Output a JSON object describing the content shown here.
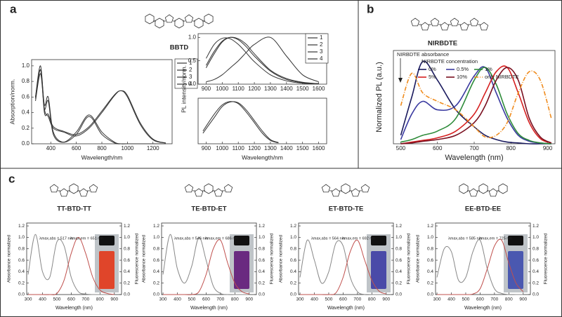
{
  "panels": [
    "a",
    "b",
    "c"
  ],
  "chart_data": [
    {
      "type": "line",
      "title": "BBTD",
      "xlabel": "Wavelength/nm",
      "ylabel": "Absorption/norm.",
      "xlim": [
        250,
        1350
      ],
      "ylim": [
        0,
        1.08
      ],
      "xticks": [
        400,
        600,
        800,
        1000,
        1200
      ],
      "yticks": [
        {
          "value": 0,
          "label": "0.0"
        },
        {
          "value": 0.2,
          "label": "0.2"
        },
        {
          "value": 0.4,
          "label": "0.4"
        },
        {
          "value": 0.6,
          "label": "0.6"
        },
        {
          "value": 0.8,
          "label": "0.8"
        },
        {
          "value": 1,
          "label": "1.0"
        }
      ],
      "x": [
        280,
        320,
        350,
        380,
        420,
        500,
        600,
        700,
        800,
        900,
        950,
        1000,
        1100,
        1200,
        1300
      ],
      "series": [
        {
          "name": "1",
          "color": "#333",
          "values": [
            0.6,
            0.95,
            0.5,
            0.6,
            0.15,
            0.02,
            0.12,
            0.35,
            0.12,
            0.01,
            0,
            0,
            0,
            0,
            0
          ]
        },
        {
          "name": "2",
          "color": "#333",
          "values": [
            0.55,
            0.9,
            0.45,
            0.55,
            0.12,
            0.02,
            0.15,
            0.37,
            0.15,
            0.02,
            0,
            0,
            0,
            0,
            0
          ]
        },
        {
          "name": "3",
          "color": "#333",
          "values": [
            0.6,
            1.0,
            0.45,
            0.35,
            0.2,
            0.15,
            0.1,
            0.2,
            0.4,
            0.62,
            0.68,
            0.6,
            0.25,
            0.05,
            0.01
          ]
        },
        {
          "name": "4",
          "color": "#333",
          "values": [
            0.58,
            0.95,
            0.4,
            0.38,
            0.22,
            0.16,
            0.12,
            0.22,
            0.42,
            0.63,
            0.68,
            0.62,
            0.27,
            0.06,
            0.01
          ]
        }
      ]
    },
    {
      "type": "line",
      "ylabel": "PL intensity/norm.",
      "xlim": [
        850,
        1650
      ],
      "ylim": [
        0,
        1.08
      ],
      "xticks": [
        900,
        1000,
        1100,
        1200,
        1300,
        1400,
        1500,
        1600
      ],
      "yticks": [
        {
          "value": 0,
          "label": "0.0"
        },
        {
          "value": 0.5,
          "label": "0.5"
        },
        {
          "value": 1,
          "label": "1.0"
        }
      ],
      "x": [
        900,
        950,
        1000,
        1050,
        1100,
        1150,
        1200,
        1300,
        1400,
        1500,
        1600
      ],
      "series": [
        {
          "name": "1",
          "color": "#333",
          "values": [
            0.4,
            0.7,
            0.92,
            1.0,
            0.95,
            0.8,
            0.6,
            0.28,
            0.1,
            0.03,
            0.01
          ]
        },
        {
          "name": "2",
          "color": "#333",
          "values": [
            0.35,
            0.65,
            0.9,
            1.0,
            0.97,
            0.85,
            0.65,
            0.3,
            0.12,
            0.04,
            0.01
          ]
        },
        {
          "name": "3",
          "color": "#333",
          "values": [
            0.55,
            0.85,
            0.98,
            0.97,
            0.85,
            0.67,
            0.48,
            0.2,
            0.07,
            0.02,
            0.01
          ]
        },
        {
          "name": "4",
          "color": "#333",
          "values": [
            0.05,
            0.1,
            0.2,
            0.35,
            0.5,
            0.68,
            0.85,
            1.0,
            0.6,
            0.2,
            0.05
          ]
        }
      ]
    },
    {
      "type": "line",
      "xlabel": "Wavelength/nm",
      "xlim": [
        850,
        1650
      ],
      "ylim": [
        0,
        1.08
      ],
      "xticks": [
        900,
        1000,
        1100,
        1200,
        1300,
        1400,
        1500,
        1600
      ],
      "x": [
        880,
        950,
        1000,
        1050,
        1100,
        1150,
        1200,
        1250,
        1300,
        1350
      ],
      "series": [
        {
          "color": "#333",
          "values": [
            0.3,
            0.7,
            0.92,
            1.0,
            0.95,
            0.75,
            0.5,
            0.25,
            0.08,
            0.02
          ]
        },
        {
          "color": "#333",
          "values": [
            0.25,
            0.62,
            0.88,
            0.99,
            0.97,
            0.8,
            0.55,
            0.3,
            0.1,
            0.03
          ]
        }
      ]
    },
    {
      "type": "line",
      "title": "NIRBDTE",
      "xlabel": "Wavelength (nm)",
      "ylabel": "Normalized PL (a.u.)",
      "xlim": [
        480,
        920
      ],
      "ylim": [
        0,
        1.1
      ],
      "xticks": [
        500,
        600,
        700,
        800,
        900
      ],
      "annotation": "NIRBDTE absorbance",
      "legend_title": "NIRBDTE concentration",
      "x": [
        500,
        530,
        560,
        600,
        650,
        700,
        730,
        760,
        790,
        820,
        850,
        880,
        910
      ],
      "series": [
        {
          "name": "0%",
          "color": "#1a1a5e",
          "values": [
            0.1,
            0.55,
            0.97,
            0.75,
            0.4,
            0.2,
            0.1,
            0.05,
            0.02,
            0.01,
            0,
            0,
            0
          ]
        },
        {
          "name": "0.5%",
          "color": "#3a3aa0",
          "values": [
            0.05,
            0.35,
            0.5,
            0.4,
            0.45,
            0.8,
            0.9,
            0.6,
            0.3,
            0.1,
            0.03,
            0.01,
            0
          ]
        },
        {
          "name": "1%",
          "color": "#2e8b3a",
          "values": [
            0.02,
            0.05,
            0.1,
            0.15,
            0.3,
            0.75,
            0.9,
            0.7,
            0.35,
            0.12,
            0.04,
            0.01,
            0
          ]
        },
        {
          "name": "5%",
          "color": "#d62020",
          "values": [
            0,
            0.02,
            0.04,
            0.07,
            0.15,
            0.35,
            0.6,
            0.85,
            0.9,
            0.6,
            0.25,
            0.06,
            0.01
          ]
        },
        {
          "name": "10%",
          "color": "#7a1020",
          "values": [
            0,
            0.01,
            0.03,
            0.05,
            0.1,
            0.25,
            0.45,
            0.75,
            0.9,
            0.75,
            0.3,
            0.08,
            0.01
          ]
        },
        {
          "name": "only NIRBDTE",
          "color": "#f08c1e",
          "style": "dashdot",
          "values": [
            0.45,
            0.83,
            0.6,
            0.5,
            0.4,
            0.2,
            0.08,
            0.1,
            0.25,
            0.6,
            0.85,
            0.75,
            0.3
          ]
        }
      ]
    },
    {
      "type": "line",
      "title": "TT-BTD-TT",
      "xlabel": "Wavelength (nm)",
      "ylabel": "Absorbance normalized",
      "y2label": "Fluorescence normalized",
      "xlim": [
        290,
        950
      ],
      "ylim": [
        0,
        1.25
      ],
      "y2lim": [
        0,
        1.25
      ],
      "xticks": [
        300,
        400,
        500,
        600,
        700,
        800,
        900
      ],
      "yticks": [
        {
          "value": 0,
          "label": "0.0"
        },
        {
          "value": 0.2,
          "label": "0.2"
        },
        {
          "value": 0.4,
          "label": "0.4"
        },
        {
          "value": 0.6,
          "label": "0.6"
        },
        {
          "value": 0.8,
          "label": "0.8"
        },
        {
          "value": 1,
          "label": "1.0"
        },
        {
          "value": 1.2,
          "label": "1.2"
        }
      ],
      "y2ticks": [
        {
          "value": 0,
          "label": "0.0"
        },
        {
          "value": 0.2,
          "label": "0.2"
        },
        {
          "value": 0.4,
          "label": "0.4"
        },
        {
          "value": 0.6,
          "label": "0.6"
        },
        {
          "value": 0.8,
          "label": "0.8"
        },
        {
          "value": 1,
          "label": "1.0"
        },
        {
          "value": 1.2,
          "label": "1.2"
        }
      ],
      "annotations": [
        {
          "text": "λmax,abs = 517 nm",
          "color": "#222"
        },
        {
          "text": "λmax,em = 651 nm",
          "color": "#c0392b"
        }
      ],
      "x": [
        300,
        350,
        400,
        450,
        500,
        550,
        600,
        650,
        700,
        750,
        800,
        850,
        900
      ],
      "series": [
        {
          "color": "#888",
          "values": [
            0.35,
            1.05,
            0.4,
            0.3,
            0.92,
            0.85,
            0.3,
            0.05,
            0.01,
            0,
            0,
            0,
            0
          ]
        },
        {
          "color": "#c0504d",
          "axis": "y2",
          "values": [
            0,
            0,
            0,
            0,
            0.02,
            0.25,
            0.72,
            1.0,
            0.72,
            0.3,
            0.08,
            0.02,
            0
          ]
        }
      ]
    },
    {
      "type": "line",
      "title": "TE-BTD-ET",
      "xlabel": "Wavelength (nm)",
      "ylabel": "Absorbance normalized",
      "y2label": "Fluorescence normalized",
      "xlim": [
        290,
        950
      ],
      "ylim": [
        0,
        1.25
      ],
      "y2lim": [
        0,
        1.25
      ],
      "xticks": [
        300,
        400,
        500,
        600,
        700,
        800,
        900
      ],
      "yticks": [
        {
          "value": 0,
          "label": "0.0"
        },
        {
          "value": 0.2,
          "label": "0.2"
        },
        {
          "value": 0.4,
          "label": "0.4"
        },
        {
          "value": 0.6,
          "label": "0.6"
        },
        {
          "value": 0.8,
          "label": "0.8"
        },
        {
          "value": 1,
          "label": "1.0"
        },
        {
          "value": 1.2,
          "label": "1.2"
        }
      ],
      "y2ticks": [
        {
          "value": 0,
          "label": "0.0"
        },
        {
          "value": 0.2,
          "label": "0.2"
        },
        {
          "value": 0.4,
          "label": "0.4"
        },
        {
          "value": 0.6,
          "label": "0.6"
        },
        {
          "value": 0.8,
          "label": "0.8"
        },
        {
          "value": 1,
          "label": "1.0"
        },
        {
          "value": 1.2,
          "label": "1.2"
        }
      ],
      "annotations": [
        {
          "text": "λmax,abs = 546 nm",
          "color": "#222"
        },
        {
          "text": "λmax,em = 686 nm",
          "color": "#c0392b"
        }
      ],
      "x": [
        300,
        350,
        400,
        450,
        500,
        550,
        600,
        650,
        700,
        750,
        800,
        850,
        900
      ],
      "series": [
        {
          "color": "#888",
          "values": [
            0.35,
            1.05,
            0.45,
            0.2,
            0.5,
            1.0,
            0.6,
            0.15,
            0.02,
            0,
            0,
            0,
            0
          ]
        },
        {
          "color": "#c0504d",
          "axis": "y2",
          "values": [
            0,
            0,
            0,
            0,
            0,
            0.05,
            0.35,
            0.8,
            0.95,
            0.55,
            0.2,
            0.05,
            0.01
          ]
        }
      ]
    },
    {
      "type": "line",
      "title": "ET-BTD-TE",
      "xlabel": "Wavelength (nm)",
      "ylabel": "Absorbance normalized",
      "y2label": "Fluorescence normalized",
      "xlim": [
        290,
        950
      ],
      "ylim": [
        0,
        1.25
      ],
      "y2lim": [
        0,
        1.25
      ],
      "xticks": [
        300,
        400,
        500,
        600,
        700,
        800,
        900
      ],
      "yticks": [
        {
          "value": 0,
          "label": "0.0"
        },
        {
          "value": 0.2,
          "label": "0.2"
        },
        {
          "value": 0.4,
          "label": "0.4"
        },
        {
          "value": 0.6,
          "label": "0.6"
        },
        {
          "value": 0.8,
          "label": "0.8"
        },
        {
          "value": 1,
          "label": "1.0"
        },
        {
          "value": 1.2,
          "label": "1.2"
        }
      ],
      "y2ticks": [
        {
          "value": 0,
          "label": "0.0"
        },
        {
          "value": 0.2,
          "label": "0.2"
        },
        {
          "value": 0.4,
          "label": "0.4"
        },
        {
          "value": 0.6,
          "label": "0.6"
        },
        {
          "value": 0.8,
          "label": "0.8"
        },
        {
          "value": 1,
          "label": "1.0"
        },
        {
          "value": 1.2,
          "label": "1.2"
        }
      ],
      "annotations": [
        {
          "text": "λmax,abs = 564 nm",
          "color": "#222"
        },
        {
          "text": "λmax,em = 692 nm",
          "color": "#c0392b"
        }
      ],
      "x": [
        300,
        350,
        400,
        450,
        500,
        550,
        600,
        650,
        700,
        750,
        800,
        850,
        900
      ],
      "series": [
        {
          "color": "#888",
          "values": [
            0.3,
            0.95,
            0.6,
            0.2,
            0.4,
            0.9,
            0.85,
            0.3,
            0.05,
            0,
            0,
            0,
            0
          ]
        },
        {
          "color": "#c0504d",
          "axis": "y2",
          "values": [
            0,
            0,
            0,
            0,
            0,
            0.03,
            0.3,
            0.75,
            0.95,
            0.6,
            0.25,
            0.06,
            0.01
          ]
        }
      ]
    },
    {
      "type": "line",
      "title": "EE-BTD-EE",
      "xlabel": "Wavelength (nm)",
      "ylabel": "Absorbance normalized",
      "y2label": "Fluorescence normalized",
      "xlim": [
        290,
        950
      ],
      "ylim": [
        0,
        1.25
      ],
      "y2lim": [
        0,
        1.25
      ],
      "xticks": [
        300,
        400,
        500,
        600,
        700,
        800,
        900
      ],
      "yticks": [
        {
          "value": 0,
          "label": "0.0"
        },
        {
          "value": 0.2,
          "label": "0.2"
        },
        {
          "value": 0.4,
          "label": "0.4"
        },
        {
          "value": 0.6,
          "label": "0.6"
        },
        {
          "value": 0.8,
          "label": "0.8"
        },
        {
          "value": 1,
          "label": "1.0"
        },
        {
          "value": 1.2,
          "label": "1.2"
        }
      ],
      "y2ticks": [
        {
          "value": 0,
          "label": "0.0"
        },
        {
          "value": 0.2,
          "label": "0.2"
        },
        {
          "value": 0.4,
          "label": "0.4"
        },
        {
          "value": 0.6,
          "label": "0.6"
        },
        {
          "value": 0.8,
          "label": "0.8"
        },
        {
          "value": 1,
          "label": "1.0"
        },
        {
          "value": 1.2,
          "label": "1.2"
        }
      ],
      "annotations": [
        {
          "text": "λmax,abs = 585 nm",
          "color": "#222"
        },
        {
          "text": "λmax,em = 725 nm",
          "color": "#c0392b"
        }
      ],
      "x": [
        300,
        350,
        400,
        450,
        500,
        550,
        600,
        650,
        700,
        750,
        800,
        850,
        900
      ],
      "series": [
        {
          "color": "#888",
          "values": [
            0.3,
            0.8,
            0.75,
            0.25,
            0.3,
            0.75,
            0.95,
            0.45,
            0.1,
            0.02,
            0,
            0,
            0
          ]
        },
        {
          "color": "#c0504d",
          "axis": "y2",
          "values": [
            0,
            0,
            0,
            0,
            0,
            0.01,
            0.1,
            0.45,
            0.85,
            0.95,
            0.55,
            0.2,
            0.05
          ]
        }
      ]
    }
  ]
}
